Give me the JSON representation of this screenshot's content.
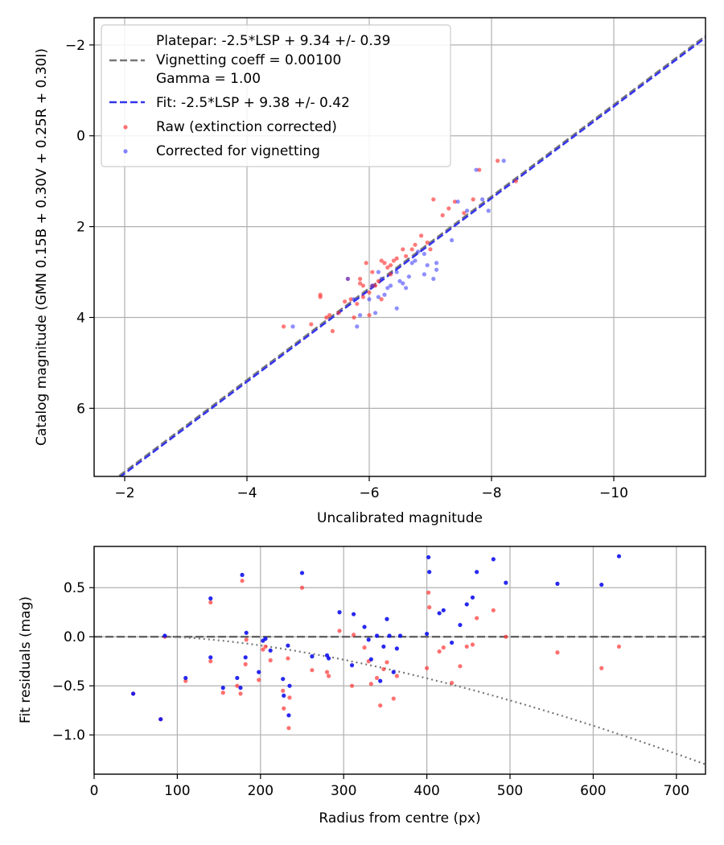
{
  "chart_data": [
    {
      "type": "scatter",
      "title": "",
      "xlabel": "Uncalibrated magnitude",
      "ylabel": "Catalog magnitude (GMN 0.15B + 0.30V + 0.25R + 0.30I)",
      "xlim": [
        -1.5,
        -11.5
      ],
      "ylim": [
        7.5,
        -2.6
      ],
      "x_inverted": true,
      "y_inverted": true,
      "grid": true,
      "xticks": [
        -2,
        -4,
        -6,
        -8,
        -10
      ],
      "xtick_labels": [
        "−2",
        "−4",
        "−6",
        "−8",
        "−10"
      ],
      "yticks": [
        -2,
        0,
        2,
        4,
        6
      ],
      "ytick_labels": [
        "−2",
        "0",
        "2",
        "4",
        "6"
      ],
      "legend": {
        "placement": "top-left",
        "entries": [
          {
            "name": "platepar",
            "label": "Platepar: -2.5*LSP + 9.34 +/- 0.39",
            "style": "none"
          },
          {
            "name": "vignetting",
            "label": "Vignetting coeff = 0.00100",
            "style": "dashed-gray"
          },
          {
            "name": "gamma",
            "label": "Gamma = 1.00",
            "style": "none"
          },
          {
            "name": "fit",
            "label": "Fit: -2.5*LSP + 9.38 +/- 0.42",
            "style": "dashed-blue"
          },
          {
            "name": "raw",
            "label": "Raw (extinction corrected)",
            "style": "red-dot"
          },
          {
            "name": "corrected",
            "label": "Corrected for vignetting",
            "style": "blue-dot"
          }
        ]
      },
      "lines": [
        {
          "name": "Platepar",
          "slope": -2.5,
          "intercept": 9.34,
          "color": "#777777",
          "style": "dashed"
        },
        {
          "name": "Fit",
          "slope": -2.5,
          "intercept": 9.38,
          "color": "#3333ee",
          "style": "dashed"
        }
      ],
      "series": [
        {
          "name": "Raw (extinction corrected)",
          "color": "#ff3333",
          "points": [
            [
              -4.6,
              4.2
            ],
            [
              -5.05,
              4.15
            ],
            [
              -5.2,
              3.5
            ],
            [
              -5.2,
              3.55
            ],
            [
              -5.3,
              4.0
            ],
            [
              -5.35,
              3.95
            ],
            [
              -5.4,
              4.3
            ],
            [
              -5.5,
              3.9
            ],
            [
              -5.6,
              3.65
            ],
            [
              -5.65,
              3.15
            ],
            [
              -5.7,
              3.6
            ],
            [
              -5.75,
              4.0
            ],
            [
              -5.8,
              3.7
            ],
            [
              -5.85,
              3.25
            ],
            [
              -5.9,
              3.3
            ],
            [
              -5.9,
              3.55
            ],
            [
              -5.95,
              2.8
            ],
            [
              -6.0,
              3.45
            ],
            [
              -6.0,
              3.95
            ],
            [
              -6.05,
              3.0
            ],
            [
              -6.1,
              3.3
            ],
            [
              -6.15,
              3.2
            ],
            [
              -6.2,
              2.75
            ],
            [
              -6.25,
              2.8
            ],
            [
              -6.3,
              2.9
            ],
            [
              -6.35,
              3.05
            ],
            [
              -6.4,
              2.75
            ],
            [
              -6.45,
              2.7
            ],
            [
              -6.55,
              2.5
            ],
            [
              -6.6,
              2.65
            ],
            [
              -6.7,
              2.5
            ],
            [
              -6.75,
              2.4
            ],
            [
              -6.85,
              2.2
            ],
            [
              -6.95,
              2.35
            ],
            [
              -7.0,
              2.5
            ],
            [
              -7.05,
              1.4
            ],
            [
              -7.2,
              1.75
            ],
            [
              -7.3,
              1.6
            ],
            [
              -7.4,
              1.45
            ],
            [
              -7.55,
              1.7
            ],
            [
              -7.7,
              1.4
            ],
            [
              -7.8,
              0.75
            ],
            [
              -8.1,
              0.55
            ],
            [
              -8.4,
              1.0
            ],
            [
              -6.05,
              3.3
            ],
            [
              -6.2,
              3.6
            ],
            [
              -6.35,
              2.85
            ],
            [
              -5.85,
              3.15
            ]
          ]
        },
        {
          "name": "Corrected for vignetting",
          "color": "#3333ff",
          "points": [
            [
              -4.75,
              4.2
            ],
            [
              -5.65,
              3.15
            ],
            [
              -5.75,
              3.6
            ],
            [
              -5.8,
              4.2
            ],
            [
              -5.85,
              3.95
            ],
            [
              -6.0,
              3.6
            ],
            [
              -6.05,
              3.3
            ],
            [
              -6.1,
              3.9
            ],
            [
              -6.15,
              3.55
            ],
            [
              -6.2,
              3.15
            ],
            [
              -6.25,
              3.5
            ],
            [
              -6.3,
              3.35
            ],
            [
              -6.35,
              3.3
            ],
            [
              -6.45,
              3.8
            ],
            [
              -6.5,
              3.2
            ],
            [
              -6.6,
              3.35
            ],
            [
              -6.65,
              3.1
            ],
            [
              -6.7,
              2.8
            ],
            [
              -6.8,
              2.55
            ],
            [
              -6.9,
              3.05
            ],
            [
              -6.95,
              2.85
            ],
            [
              -7.05,
              3.15
            ],
            [
              -7.1,
              2.8
            ],
            [
              -7.1,
              2.95
            ],
            [
              -7.35,
              2.3
            ],
            [
              -7.45,
              1.45
            ],
            [
              -7.6,
              1.65
            ],
            [
              -7.75,
              0.75
            ],
            [
              -7.85,
              1.4
            ],
            [
              -7.95,
              1.65
            ],
            [
              -8.2,
              0.55
            ],
            [
              -6.55,
              3.25
            ],
            [
              -6.75,
              2.75
            ],
            [
              -6.9,
              2.6
            ],
            [
              -6.45,
              3.0
            ],
            [
              -6.15,
              3.0
            ]
          ]
        }
      ]
    },
    {
      "type": "scatter",
      "title": "",
      "xlabel": "Radius from centre (px)",
      "ylabel": "Fit residuals (mag)",
      "xlim": [
        0,
        735
      ],
      "ylim": [
        -1.4,
        0.92
      ],
      "grid": true,
      "xticks": [
        0,
        100,
        200,
        300,
        400,
        500,
        600,
        700
      ],
      "xtick_labels": [
        "0",
        "100",
        "200",
        "300",
        "400",
        "500",
        "600",
        "700"
      ],
      "yticks": [
        0.5,
        0.0,
        -0.5,
        -1.0
      ],
      "ytick_labels": [
        "0.5",
        "0.0",
        "−0.5",
        "−1.0"
      ],
      "lines": [
        {
          "name": "zero",
          "value": 0.0,
          "color": "#444444",
          "style": "dashed"
        },
        {
          "name": "vignetting curve",
          "coefficient": 0.001,
          "color": "#777777",
          "style": "dotted"
        }
      ],
      "series": [
        {
          "name": "Raw (extinction corrected)",
          "color": "#ff3333",
          "points": [
            [
              47,
              -0.58
            ],
            [
              80,
              -0.84
            ],
            [
              85,
              0.0
            ],
            [
              110,
              -0.45
            ],
            [
              140,
              -0.25
            ],
            [
              140,
              0.35
            ],
            [
              155,
              -0.57
            ],
            [
              172,
              -0.5
            ],
            [
              176,
              -0.58
            ],
            [
              178,
              0.57
            ],
            [
              182,
              -0.28
            ],
            [
              183,
              -0.03
            ],
            [
              198,
              -0.44
            ],
            [
              203,
              -0.13
            ],
            [
              206,
              -0.1
            ],
            [
              212,
              -0.24
            ],
            [
              227,
              -0.55
            ],
            [
              228,
              -0.73
            ],
            [
              233,
              -0.22
            ],
            [
              234,
              -0.93
            ],
            [
              235,
              -0.62
            ],
            [
              250,
              0.5
            ],
            [
              262,
              -0.34
            ],
            [
              280,
              -0.36
            ],
            [
              282,
              -0.4
            ],
            [
              295,
              0.06
            ],
            [
              310,
              -0.5
            ],
            [
              312,
              0.02
            ],
            [
              325,
              -0.11
            ],
            [
              330,
              -0.25
            ],
            [
              333,
              -0.48
            ],
            [
              340,
              -0.42
            ],
            [
              344,
              -0.7
            ],
            [
              348,
              -0.33
            ],
            [
              352,
              -0.26
            ],
            [
              360,
              -0.63
            ],
            [
              364,
              -0.4
            ],
            [
              400,
              -0.32
            ],
            [
              402,
              0.45
            ],
            [
              403,
              0.3
            ],
            [
              415,
              -0.15
            ],
            [
              420,
              -0.11
            ],
            [
              430,
              -0.47
            ],
            [
              440,
              -0.3
            ],
            [
              448,
              -0.1
            ],
            [
              455,
              -0.08
            ],
            [
              460,
              0.19
            ],
            [
              480,
              0.27
            ],
            [
              495,
              0.0
            ],
            [
              557,
              -0.16
            ],
            [
              610,
              -0.32
            ],
            [
              631,
              -0.1
            ]
          ]
        },
        {
          "name": "Corrected for vignetting",
          "color": "#1111ee",
          "points": [
            [
              47,
              -0.58
            ],
            [
              80,
              -0.84
            ],
            [
              85,
              0.01
            ],
            [
              110,
              -0.42
            ],
            [
              140,
              -0.21
            ],
            [
              140,
              0.39
            ],
            [
              155,
              -0.52
            ],
            [
              172,
              -0.42
            ],
            [
              176,
              -0.52
            ],
            [
              178,
              0.63
            ],
            [
              182,
              -0.21
            ],
            [
              183,
              0.04
            ],
            [
              198,
              -0.36
            ],
            [
              203,
              -0.04
            ],
            [
              206,
              -0.02
            ],
            [
              212,
              -0.14
            ],
            [
              227,
              -0.43
            ],
            [
              228,
              -0.6
            ],
            [
              233,
              -0.09
            ],
            [
              234,
              -0.8
            ],
            [
              235,
              -0.5
            ],
            [
              250,
              0.65
            ],
            [
              262,
              -0.2
            ],
            [
              280,
              -0.19
            ],
            [
              282,
              -0.22
            ],
            [
              295,
              0.25
            ],
            [
              310,
              -0.29
            ],
            [
              312,
              0.23
            ],
            [
              325,
              0.1
            ],
            [
              330,
              -0.03
            ],
            [
              333,
              -0.23
            ],
            [
              340,
              0.01
            ],
            [
              344,
              -0.45
            ],
            [
              348,
              -0.1
            ],
            [
              352,
              0.18
            ],
            [
              355,
              0.01
            ],
            [
              360,
              -0.36
            ],
            [
              364,
              -0.12
            ],
            [
              368,
              0.01
            ],
            [
              400,
              0.03
            ],
            [
              402,
              0.81
            ],
            [
              403,
              0.66
            ],
            [
              415,
              0.24
            ],
            [
              420,
              0.27
            ],
            [
              430,
              -0.06
            ],
            [
              440,
              0.12
            ],
            [
              448,
              0.33
            ],
            [
              455,
              0.4
            ],
            [
              460,
              0.66
            ],
            [
              480,
              0.79
            ],
            [
              495,
              0.55
            ],
            [
              557,
              0.54
            ],
            [
              610,
              0.53
            ],
            [
              631,
              0.82
            ]
          ]
        }
      ]
    }
  ]
}
